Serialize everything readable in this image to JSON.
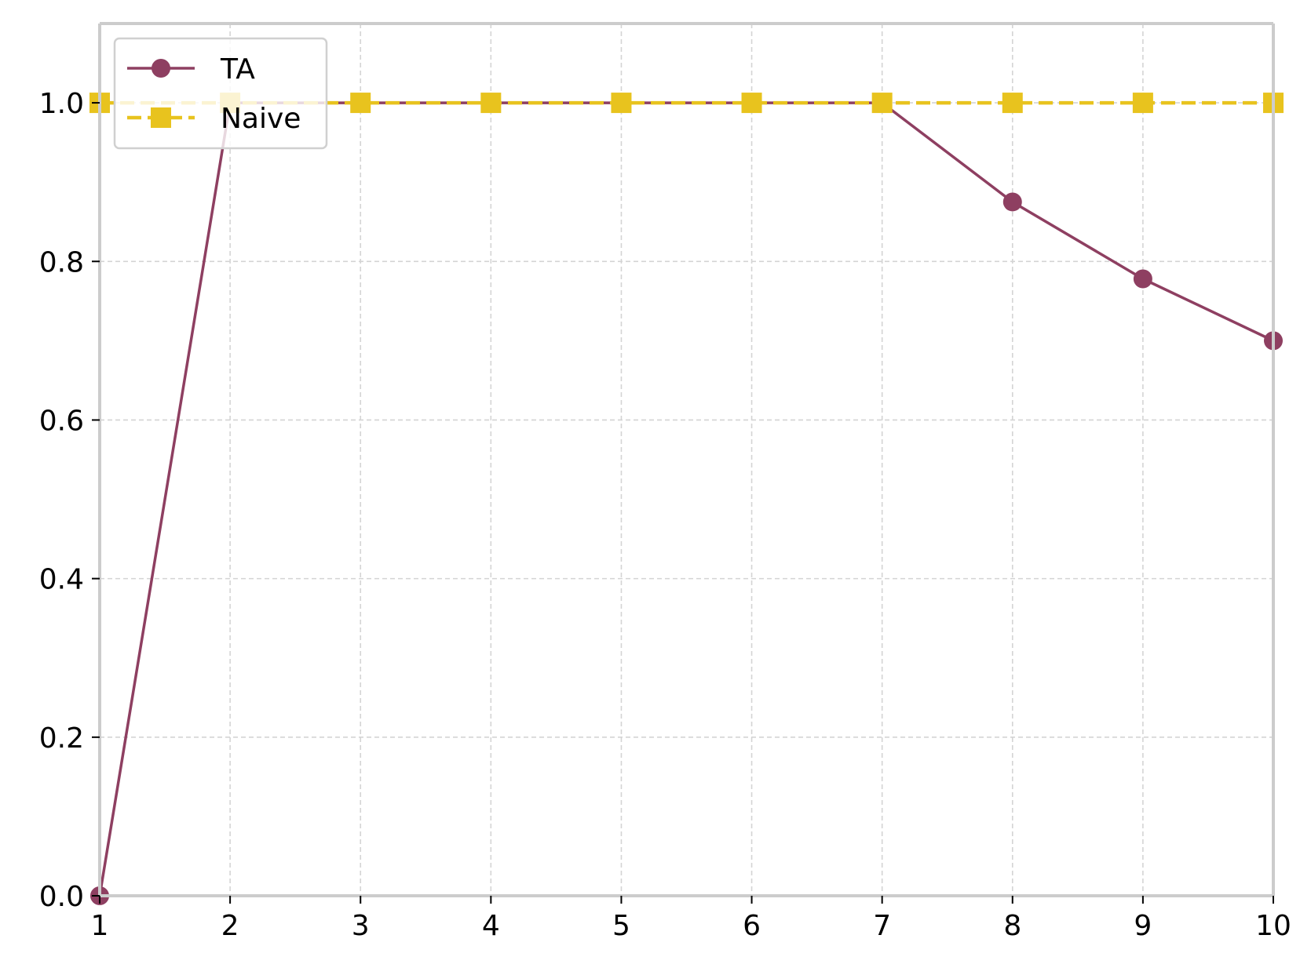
{
  "chart_data": {
    "type": "line",
    "title": "",
    "xlabel": "",
    "ylabel": "",
    "x": [
      1,
      2,
      3,
      4,
      5,
      6,
      7,
      8,
      9,
      10
    ],
    "xlim": [
      1,
      10
    ],
    "ylim": [
      0,
      1.1
    ],
    "xticks": [
      "1",
      "2",
      "3",
      "4",
      "5",
      "6",
      "7",
      "8",
      "9",
      "10"
    ],
    "yticks": [
      "0.0",
      "0.2",
      "0.4",
      "0.6",
      "0.8",
      "1.0"
    ],
    "ytick_values": [
      0,
      0.2,
      0.4,
      0.6,
      0.8,
      1.0
    ],
    "grid": true,
    "legend_position": "top-left",
    "series": [
      {
        "name": "TA",
        "values": [
          0.0,
          1.0,
          1.0,
          1.0,
          1.0,
          1.0,
          1.0,
          0.875,
          0.778,
          0.7
        ],
        "color": "#8e3f61",
        "marker": "circle",
        "line_style": "solid"
      },
      {
        "name": "Naive",
        "values": [
          1.0,
          1.0,
          1.0,
          1.0,
          1.0,
          1.0,
          1.0,
          1.0,
          1.0,
          1.0
        ],
        "color": "#e8c31e",
        "marker": "square",
        "line_style": "dashed"
      }
    ],
    "colors": {
      "axis": "#cccccc",
      "grid": "#d4d4d4",
      "text": "#000000"
    }
  }
}
